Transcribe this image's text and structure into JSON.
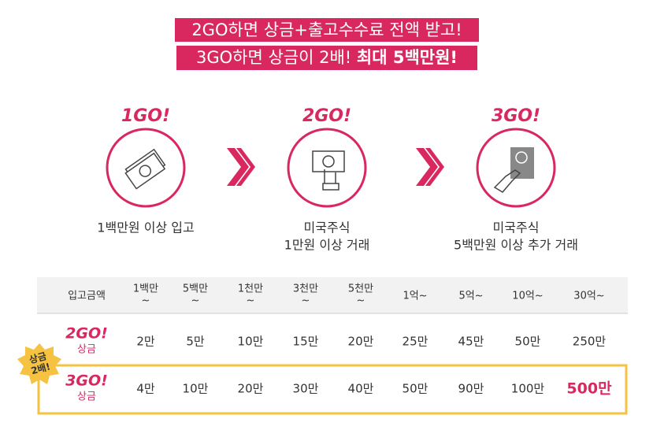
{
  "header": {
    "line1": "2GO하면 상금+출고수수료 전액 받고!",
    "line2": {
      "normal": "3GO하면 상금이 2배! ",
      "bold": "최대 5백만원!"
    }
  },
  "steps": [
    {
      "title": "1GO!",
      "text": [
        "1백만원 이상 입고"
      ]
    },
    {
      "title": "2GO!",
      "text": [
        "미국주식",
        "1만원 이상 거래"
      ]
    },
    {
      "title": "3GO!",
      "text": [
        "미국주식",
        "5백만원 이상 추가 거래"
      ]
    }
  ],
  "table": {
    "header": [
      "입고금액",
      [
        "1백만",
        "~"
      ],
      [
        "5백만",
        "~"
      ],
      [
        "1천만",
        "~"
      ],
      [
        "3천만",
        "~"
      ],
      [
        "5천만",
        "~"
      ],
      [
        "1억~"
      ],
      [
        "5억~"
      ],
      [
        "10억~"
      ],
      [
        "30억~"
      ]
    ],
    "rows": [
      {
        "label": "2GO!",
        "sub": "상금",
        "cells": [
          "2만",
          "5만",
          "10만",
          "15만",
          "20만",
          "25만",
          "45만",
          "50만",
          "250만"
        ]
      },
      {
        "label": "3GO!",
        "sub": "상금",
        "cells": [
          "4만",
          "10만",
          "20만",
          "30만",
          "40만",
          "50만",
          "90만",
          "100만",
          "500만"
        ]
      }
    ],
    "badge": [
      "상금",
      "2배!"
    ]
  }
}
